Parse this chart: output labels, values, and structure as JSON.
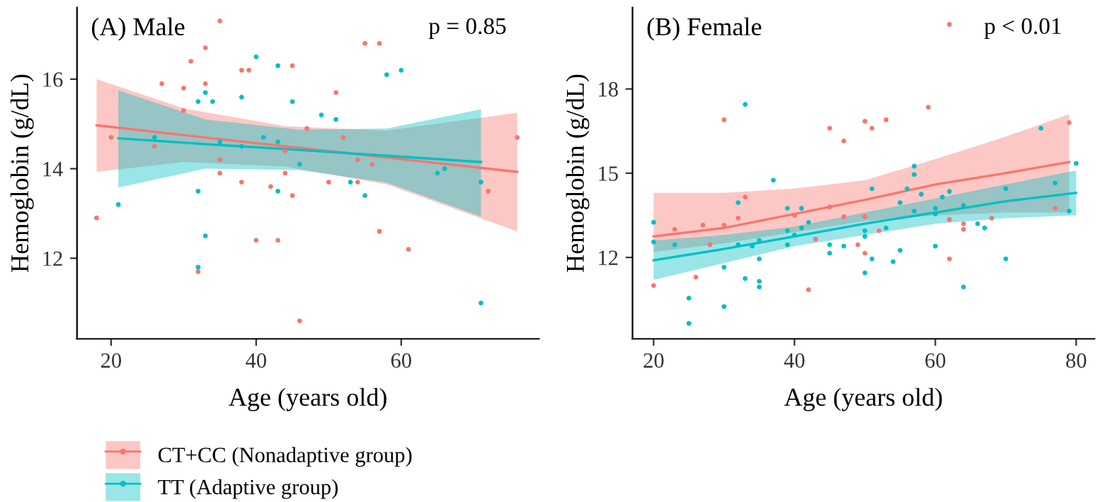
{
  "chart_data": [
    {
      "type": "scatter",
      "xlabel": "Age (years old)",
      "ylabel": "Hemoglobin (g/dL)",
      "annotations": [
        "(A) Male",
        "p = 0.85"
      ],
      "xlim": [
        15.3,
        79
      ],
      "ylim": [
        10.2,
        17.6
      ],
      "xticks": [
        20,
        40,
        60
      ],
      "yticks": [
        12,
        14,
        16
      ],
      "grid": false,
      "legend": "bottom left",
      "series": [
        {
          "name": "CT+CC (Nonadaptive group)",
          "marker": "circle",
          "color": "#f8766d",
          "x": [
            18,
            20,
            26,
            27,
            30,
            30,
            31,
            33,
            33,
            35,
            35,
            35,
            32,
            38,
            39,
            38,
            40,
            42,
            43,
            44,
            44,
            45,
            45,
            46,
            47,
            50,
            51,
            52,
            54,
            54,
            55,
            56,
            57,
            57,
            61,
            72,
            76
          ],
          "values": [
            12.9,
            14.7,
            14.5,
            15.9,
            15.8,
            15.3,
            16.4,
            16.7,
            15.9,
            17.3,
            14.2,
            13.9,
            11.7,
            16.2,
            16.2,
            13.7,
            12.4,
            13.6,
            12.4,
            13.9,
            14.4,
            16.3,
            13.4,
            10.6,
            14.9,
            13.7,
            15.7,
            14.7,
            14.2,
            13.7,
            16.8,
            14.1,
            16.8,
            12.6,
            12.2,
            13.5,
            14.7
          ]
        },
        {
          "name": "TT (Adaptive group)",
          "marker": "circle",
          "color": "#00bfc4",
          "x": [
            21,
            26,
            32,
            32,
            32,
            33,
            33,
            34,
            35,
            38,
            38,
            40,
            41,
            43,
            43,
            43,
            45,
            46,
            49,
            51,
            53,
            55,
            58,
            60,
            65,
            66,
            71,
            71
          ],
          "values": [
            13.2,
            14.7,
            15.5,
            13.5,
            11.8,
            15.7,
            12.5,
            15.5,
            14.6,
            15.6,
            14.5,
            16.5,
            14.7,
            16.3,
            14.6,
            13.5,
            15.5,
            14.1,
            15.2,
            15.1,
            13.7,
            13.4,
            16.1,
            16.2,
            13.9,
            14.0,
            13.7,
            11.0
          ]
        },
        {
          "type": "line",
          "color": "#f8766d",
          "x": [
            18,
            30,
            44,
            58,
            76
          ],
          "values": [
            14.97,
            14.75,
            14.5,
            14.25,
            13.93
          ],
          "lower": [
            13.93,
            14.15,
            14.05,
            13.65,
            12.6
          ],
          "upper": [
            16.0,
            15.35,
            14.95,
            14.85,
            15.25
          ]
        },
        {
          "type": "line",
          "color": "#00bfc4",
          "x": [
            21,
            33,
            46,
            58,
            71
          ],
          "values": [
            14.68,
            14.55,
            14.42,
            14.29,
            14.15
          ],
          "lower": [
            13.58,
            14.0,
            13.97,
            13.69,
            12.93
          ],
          "upper": [
            15.75,
            15.1,
            14.87,
            14.9,
            15.33
          ]
        }
      ]
    },
    {
      "type": "scatter",
      "xlabel": "Age (years old)",
      "ylabel": "Hemoglobin (g/dL)",
      "annotations": [
        "(B) Female",
        "p < 0.01"
      ],
      "xlim": [
        17,
        82.6
      ],
      "ylim": [
        9.1,
        20.9
      ],
      "xticks": [
        20,
        40,
        60,
        80
      ],
      "yticks": [
        12,
        15,
        18
      ],
      "grid": false,
      "series": [
        {
          "marker": "circle",
          "color": "#f8766d",
          "x": [
            20,
            23,
            26,
            27,
            28,
            30,
            30,
            32,
            33,
            40,
            42,
            43,
            45,
            45,
            47,
            47,
            49,
            50,
            50,
            50,
            51,
            52,
            53,
            59,
            62,
            62,
            64,
            64,
            68,
            77,
            79,
            62
          ],
          "values": [
            11.0,
            13.0,
            11.3,
            13.15,
            12.45,
            16.9,
            13.15,
            13.4,
            14.15,
            13.5,
            10.85,
            12.65,
            16.6,
            13.8,
            16.15,
            13.45,
            12.45,
            16.85,
            12.15,
            13.45,
            16.6,
            12.95,
            16.9,
            17.35,
            13.35,
            11.95,
            13.2,
            13.0,
            13.4,
            13.75,
            16.8,
            20.3
          ]
        },
        {
          "marker": "circle",
          "color": "#00bfc4",
          "x": [
            20,
            20,
            23,
            25,
            25,
            30,
            30,
            32,
            32,
            33,
            33,
            34,
            35,
            35,
            35,
            35,
            37,
            39,
            39,
            39,
            40,
            41,
            41,
            42,
            45,
            45,
            47,
            50,
            50,
            50,
            51,
            51,
            53,
            54,
            55,
            55,
            56,
            57,
            57,
            57,
            58,
            60,
            60,
            60,
            61,
            62,
            64,
            64,
            66,
            67,
            70,
            70,
            75,
            77,
            79,
            80
          ],
          "values": [
            13.25,
            12.55,
            12.45,
            10.55,
            9.65,
            11.65,
            10.25,
            13.95,
            12.45,
            17.45,
            11.25,
            12.4,
            11.95,
            12.6,
            11.15,
            10.95,
            14.75,
            13.75,
            12.95,
            12.45,
            12.8,
            13.75,
            13.05,
            13.25,
            12.45,
            12.15,
            12.4,
            12.95,
            12.75,
            11.45,
            14.45,
            11.95,
            13.05,
            11.85,
            13.95,
            12.25,
            14.45,
            15.25,
            14.95,
            13.65,
            14.25,
            13.75,
            13.55,
            12.4,
            14.15,
            14.35,
            13.85,
            10.95,
            13.2,
            13.05,
            14.45,
            11.95,
            16.6,
            14.65,
            13.65,
            15.35
          ]
        },
        {
          "type": "line",
          "color": "#f8766d",
          "x": [
            20,
            30,
            40,
            50,
            60,
            70,
            79
          ],
          "values": [
            12.75,
            13.05,
            13.55,
            14.05,
            14.6,
            15.0,
            15.4
          ],
          "lower": [
            12.2,
            12.5,
            12.9,
            13.3,
            13.5,
            13.6,
            13.6
          ],
          "upper": [
            14.3,
            14.3,
            14.45,
            14.75,
            15.5,
            16.3,
            17.1
          ]
        },
        {
          "type": "line",
          "color": "#00bfc4",
          "x": [
            20,
            30,
            40,
            50,
            60,
            70,
            80
          ],
          "values": [
            11.9,
            12.3,
            12.75,
            13.2,
            13.6,
            14.0,
            14.3
          ],
          "lower": [
            11.2,
            11.8,
            12.4,
            12.8,
            13.2,
            13.4,
            13.5
          ],
          "upper": [
            12.6,
            12.8,
            13.1,
            13.6,
            14.1,
            14.6,
            15.1
          ]
        }
      ]
    }
  ]
}
